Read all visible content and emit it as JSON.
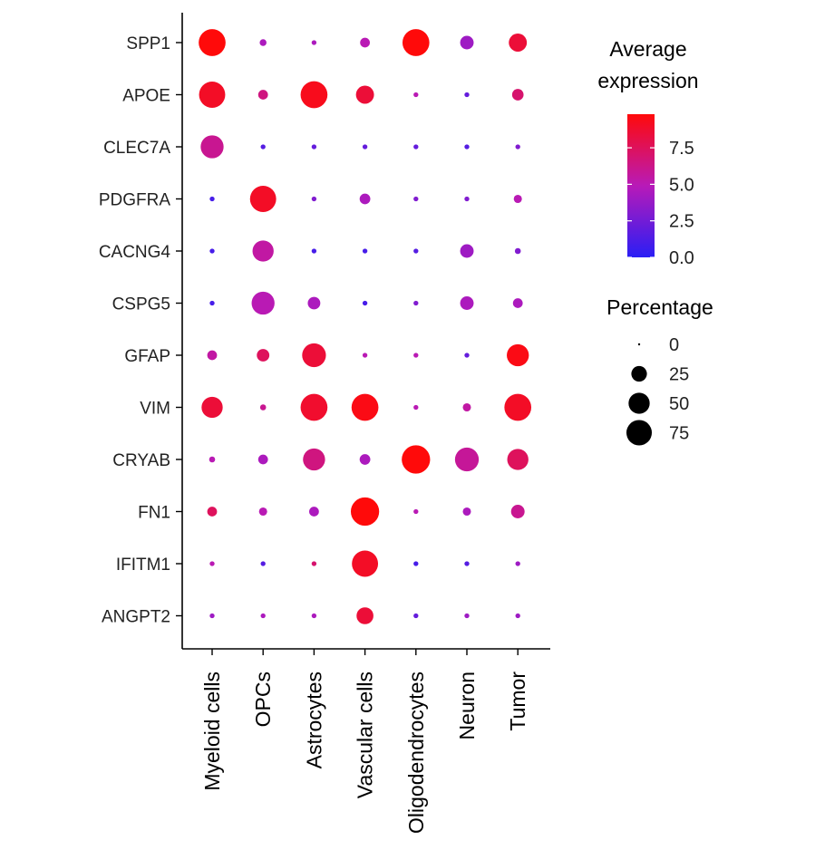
{
  "chart_data": {
    "type": "dotplot",
    "genes": [
      "SPP1",
      "APOE",
      "CLEC7A",
      "PDGFRA",
      "CACNG4",
      "CSPG5",
      "GFAP",
      "VIM",
      "CRYAB",
      "FN1",
      "IFITM1",
      "ANGPT2"
    ],
    "cell_types": [
      "Myeloid cells",
      "OPCs",
      "Astrocytes",
      "Vascular cells",
      "Oligodendrocytes",
      "Neuron",
      "Tumor"
    ],
    "percentage": [
      [
        85,
        3,
        1,
        8,
        85,
        18,
        35
      ],
      [
        80,
        8,
        85,
        35,
        1,
        1,
        12
      ],
      [
        60,
        1,
        1,
        1,
        1,
        1,
        1
      ],
      [
        1,
        80,
        1,
        10,
        1,
        1,
        5
      ],
      [
        1,
        50,
        1,
        1,
        1,
        18,
        2
      ],
      [
        1,
        60,
        15,
        1,
        1,
        18,
        8
      ],
      [
        8,
        15,
        65,
        1,
        1,
        1,
        55
      ],
      [
        50,
        2,
        85,
        85,
        1,
        5,
        85
      ],
      [
        2,
        8,
        55,
        10,
        95,
        65,
        50
      ],
      [
        8,
        5,
        8,
        95,
        1,
        5,
        18
      ],
      [
        1,
        1,
        1,
        80,
        1,
        1,
        1
      ],
      [
        1,
        1,
        1,
        30,
        1,
        1,
        1
      ]
    ],
    "expression": [
      [
        9.8,
        4.5,
        4.5,
        5.0,
        9.8,
        4.0,
        8.5
      ],
      [
        9.0,
        6.5,
        9.3,
        8.5,
        5.0,
        2.0,
        7.0
      ],
      [
        6.0,
        1.5,
        2.0,
        2.0,
        2.0,
        1.5,
        3.0
      ],
      [
        1.0,
        9.0,
        3.0,
        4.5,
        3.0,
        3.0,
        5.0
      ],
      [
        1.0,
        5.5,
        1.0,
        1.0,
        1.5,
        4.0,
        3.0
      ],
      [
        1.0,
        5.0,
        4.5,
        1.0,
        3.0,
        4.5,
        4.5
      ],
      [
        5.5,
        7.5,
        8.5,
        5.0,
        5.0,
        2.0,
        9.5
      ],
      [
        8.5,
        6.0,
        8.8,
        9.5,
        5.0,
        5.5,
        9.0
      ],
      [
        5.0,
        4.5,
        6.5,
        4.5,
        9.8,
        5.8,
        7.5
      ],
      [
        7.5,
        5.0,
        4.5,
        9.8,
        5.0,
        4.5,
        6.0
      ],
      [
        5.0,
        1.5,
        7.0,
        9.0,
        1.0,
        1.5,
        4.0
      ],
      [
        4.0,
        4.5,
        4.5,
        8.5,
        2.0,
        4.0,
        4.0
      ]
    ],
    "color_scale": {
      "low": "#2a1ef5",
      "mid": "#b81ab8",
      "high": "#ff0a0a",
      "domain": [
        0,
        9.8
      ]
    },
    "legend_color": {
      "title_line1": "Average",
      "title_line2": "expression",
      "ticks": [
        "7.5",
        "5.0",
        "2.5",
        "0.0"
      ],
      "tick_values": [
        7.5,
        5.0,
        2.5,
        0.0
      ]
    },
    "legend_size": {
      "title": "Percentage",
      "labels": [
        "0",
        "25",
        "50",
        "75"
      ],
      "values": [
        0,
        25,
        50,
        75
      ]
    }
  }
}
